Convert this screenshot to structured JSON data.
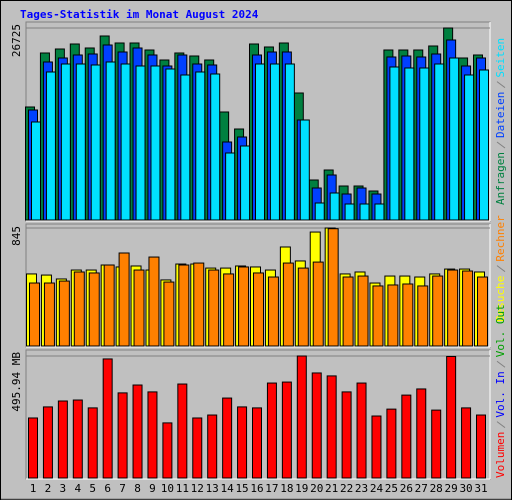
{
  "chart_data": [
    {
      "type": "bar",
      "title": "Tages-Statistik im Monat August 2024",
      "categories": [
        "1",
        "2",
        "3",
        "4",
        "5",
        "6",
        "7",
        "8",
        "9",
        "10",
        "11",
        "12",
        "13",
        "14",
        "15",
        "16",
        "17",
        "18",
        "19",
        "20",
        "21",
        "22",
        "23",
        "24",
        "25",
        "26",
        "27",
        "28",
        "29",
        "30",
        "31"
      ],
      "category_colors": [
        "#000000",
        "#000000",
        "#008040",
        "#008040",
        "#000000",
        "#000000",
        "#000000",
        "#000000",
        "#000000",
        "#008040",
        "#008040",
        "#000000",
        "#000000",
        "#000000",
        "#000000",
        "#000000",
        "#008040",
        "#008040",
        "#000000",
        "#000000",
        "#000000",
        "#000000",
        "#000000",
        "#008040",
        "#008040",
        "#000000",
        "#000000",
        "#000000",
        "#000000",
        "#000000",
        "#008040"
      ],
      "ylim": [
        0,
        26725
      ],
      "yticks": [
        26725
      ],
      "series": [
        {
          "name": "Anfragen",
          "color": "#008040",
          "values": [
            15730,
            23246,
            23803,
            24499,
            23942,
            25613,
            24638,
            24638,
            23664,
            22272,
            23246,
            22829,
            22272,
            15034,
            12667,
            24499,
            24082,
            24638,
            17678,
            5568,
            6960,
            4733,
            4733,
            4037,
            23664,
            23664,
            23664,
            24221,
            26725,
            22550,
            22968
          ]
        },
        {
          "name": "Dateien",
          "color": "#0040ff",
          "values": [
            15312,
            21994,
            22550,
            22968,
            23107,
            24360,
            23386,
            23942,
            22968,
            21437,
            22968,
            21715,
            21576,
            10858,
            11554,
            22968,
            23386,
            23386,
            13920,
            4454,
            6264,
            3619,
            4454,
            3619,
            22690,
            22829,
            22690,
            23107,
            25056,
            21437,
            22550
          ]
        },
        {
          "name": "Seiten",
          "color": "#00e0ff",
          "values": [
            13642,
            20602,
            21715,
            21715,
            21576,
            21994,
            21715,
            21437,
            21437,
            21019,
            20184,
            20602,
            20323,
            9326,
            10301,
            21715,
            21715,
            21715,
            13920,
            2366,
            3758,
            2227,
            2227,
            2227,
            21298,
            21158,
            21158,
            21715,
            22550,
            20184,
            20880
          ]
        }
      ]
    },
    {
      "type": "bar",
      "ylim": [
        0,
        845
      ],
      "yticks": [
        845
      ],
      "series": [
        {
          "name": "Besuche",
          "color": "#ffff00",
          "values": [
            516,
            508,
            480,
            544,
            544,
            580,
            566,
            573,
            544,
            473,
            587,
            587,
            558,
            558,
            573,
            566,
            544,
            709,
            609,
            816,
            845,
            516,
            530,
            451,
            501,
            501,
            494,
            516,
            551,
            551,
            530
          ]
        },
        {
          "name": "Rechner",
          "color": "#ff8000",
          "values": [
            451,
            451,
            465,
            530,
            523,
            580,
            666,
            544,
            637,
            458,
            580,
            594,
            544,
            516,
            566,
            523,
            494,
            594,
            558,
            601,
            840,
            494,
            501,
            430,
            437,
            444,
            430,
            501,
            544,
            537,
            494
          ]
        }
      ]
    },
    {
      "type": "bar",
      "ylim": [
        0,
        495.94
      ],
      "yticks": [
        {
          "value": 495.94,
          "label": "495.94 MB"
        }
      ],
      "series": [
        {
          "name": "Volumen",
          "color": "#ff0000",
          "values": [
            244,
            289,
            313,
            317,
            285,
            484,
            346,
            378,
            350,
            224,
            382,
            244,
            256,
            325,
            289,
            285,
            386,
            390,
            495.94,
            427,
            415,
            350,
            386,
            252,
            280,
            337,
            362,
            276,
            494,
            285,
            256
          ]
        },
        {
          "name": "Vol. In",
          "color": "#0000ff"
        },
        {
          "name": "Vol. Out",
          "color": "#00a000"
        }
      ]
    }
  ]
}
